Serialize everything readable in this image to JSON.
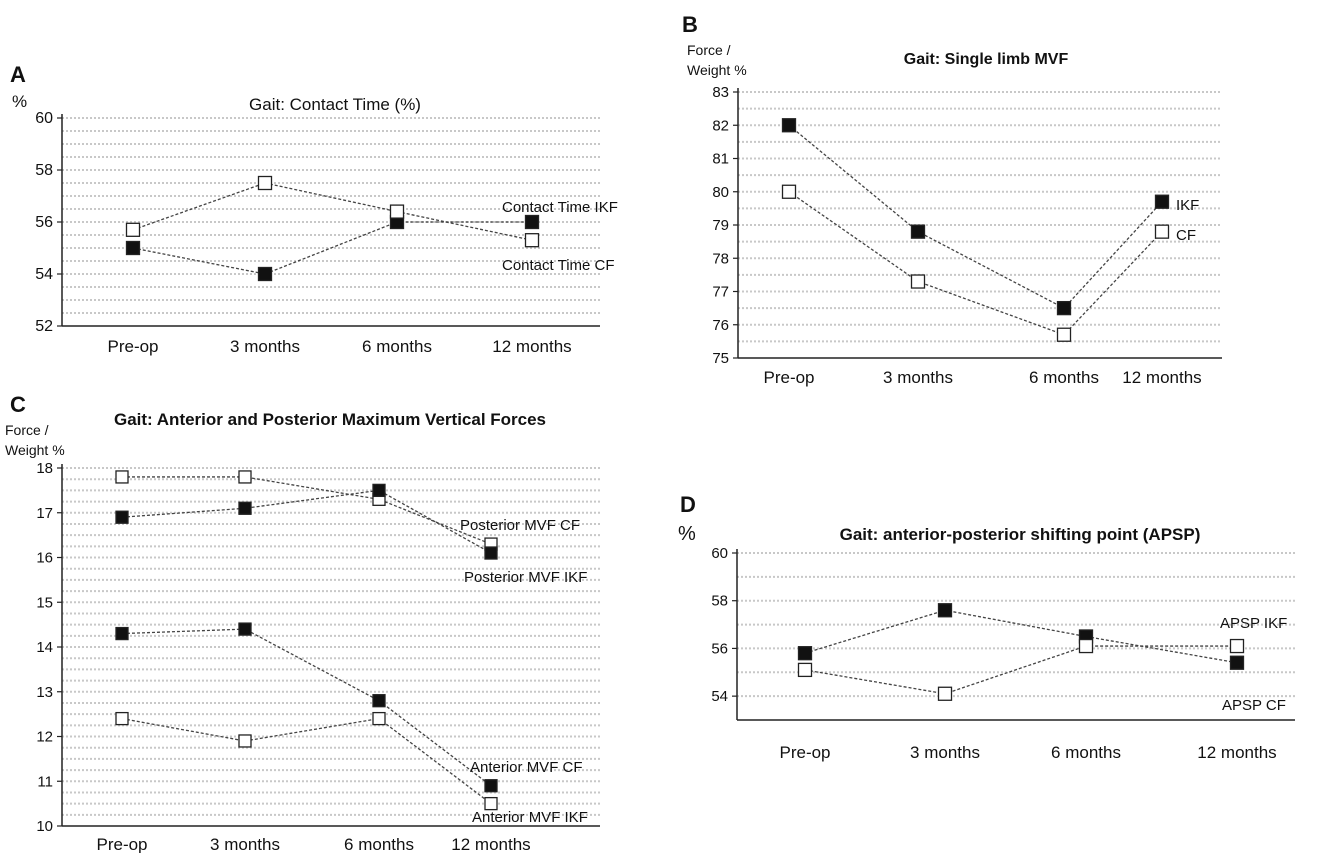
{
  "chart_data": [
    {
      "panel": "A",
      "type": "line",
      "title": "Gait: Contact Time (%)",
      "ylabel": "%",
      "categories": [
        "Pre-op",
        "3 months",
        "6 months",
        "12 months"
      ],
      "ylim": [
        52,
        60
      ],
      "ytick_values": [
        52,
        54,
        56,
        58,
        60
      ],
      "series": [
        {
          "name": "Contact Time IKF",
          "marker": "filled",
          "values": [
            55.0,
            54.0,
            56.0,
            56.0
          ]
        },
        {
          "name": "Contact Time CF",
          "marker": "open",
          "values": [
            55.7,
            57.5,
            56.4,
            55.3
          ]
        }
      ]
    },
    {
      "panel": "B",
      "type": "line",
      "title": "Gait: Single limb MVF",
      "ylabel": "Force /\nWeight %",
      "categories": [
        "Pre-op",
        "3 months",
        "6 months",
        "12 months"
      ],
      "ylim": [
        75,
        83
      ],
      "ytick_values": [
        75,
        76,
        77,
        78,
        79,
        80,
        81,
        82,
        83
      ],
      "series": [
        {
          "name": "IKF",
          "marker": "filled",
          "values": [
            82.0,
            78.8,
            76.5,
            79.7
          ]
        },
        {
          "name": "CF",
          "marker": "open",
          "values": [
            80.0,
            77.3,
            75.7,
            78.8
          ]
        }
      ]
    },
    {
      "panel": "C",
      "type": "line",
      "title": "Gait: Anterior and Posterior Maximum Vertical Forces",
      "ylabel": "Force /\nWeight %",
      "categories": [
        "Pre-op",
        "3 months",
        "6 months",
        "12 months"
      ],
      "ylim": [
        10,
        18
      ],
      "ytick_values": [
        10,
        11,
        12,
        13,
        14,
        15,
        16,
        17,
        18
      ],
      "series": [
        {
          "name": "Posterior MVF CF",
          "marker": "open",
          "values": [
            17.8,
            17.8,
            17.3,
            16.3
          ]
        },
        {
          "name": "Posterior MVF IKF",
          "marker": "filled",
          "values": [
            16.9,
            17.1,
            17.5,
            16.1
          ]
        },
        {
          "name": "Anterior MVF CF",
          "marker": "filled",
          "values": [
            14.3,
            14.4,
            12.8,
            10.9
          ]
        },
        {
          "name": "Anterior MVF IKF",
          "marker": "open",
          "values": [
            12.4,
            11.9,
            12.4,
            10.5
          ]
        }
      ]
    },
    {
      "panel": "D",
      "type": "line",
      "title": "Gait: anterior-posterior shifting point (APSP)",
      "ylabel": "%",
      "categories": [
        "Pre-op",
        "3 months",
        "6 months",
        "12 months"
      ],
      "ylim": [
        53,
        60
      ],
      "ytick_values": [
        54,
        56,
        58,
        60
      ],
      "series": [
        {
          "name": "APSP IKF",
          "marker": "filled",
          "values": [
            55.8,
            57.6,
            56.5,
            55.4
          ]
        },
        {
          "name": "APSP CF",
          "marker": "open",
          "values": [
            55.1,
            54.1,
            56.1,
            56.1
          ]
        }
      ]
    }
  ]
}
